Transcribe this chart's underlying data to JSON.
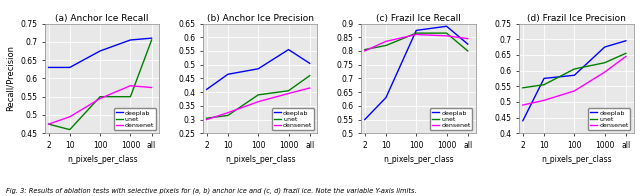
{
  "x_labels": [
    "2",
    "10",
    "100",
    "1000",
    "all"
  ],
  "x_log_positions": [
    2,
    10,
    100,
    1000,
    5000
  ],
  "subplots": [
    {
      "title": "(a) Anchor Ice Recall",
      "ylabel": "Recall/Precision",
      "ylim": [
        0.45,
        0.75
      ],
      "yticks": [
        0.45,
        0.5,
        0.55,
        0.6,
        0.65,
        0.7,
        0.75
      ],
      "deeplab": [
        0.63,
        0.63,
        0.675,
        0.705,
        0.71
      ],
      "unet": [
        0.475,
        0.46,
        0.55,
        0.55,
        0.705
      ],
      "densenet": [
        0.475,
        0.495,
        0.545,
        0.58,
        0.575
      ]
    },
    {
      "title": "(b) Anchor Ice Precision",
      "ylabel": "",
      "ylim": [
        0.25,
        0.65
      ],
      "yticks": [
        0.25,
        0.3,
        0.35,
        0.4,
        0.45,
        0.5,
        0.55,
        0.6,
        0.65
      ],
      "deeplab": [
        0.41,
        0.465,
        0.485,
        0.555,
        0.505
      ],
      "unet": [
        0.305,
        0.315,
        0.39,
        0.405,
        0.46
      ],
      "densenet": [
        0.3,
        0.325,
        0.365,
        0.395,
        0.415
      ]
    },
    {
      "title": "(c) Frazil Ice Recall",
      "ylabel": "",
      "ylim": [
        0.5,
        0.9
      ],
      "yticks": [
        0.5,
        0.55,
        0.6,
        0.65,
        0.7,
        0.75,
        0.8,
        0.85,
        0.9
      ],
      "deeplab": [
        0.55,
        0.63,
        0.875,
        0.89,
        0.825
      ],
      "unet": [
        0.805,
        0.82,
        0.865,
        0.865,
        0.8
      ],
      "densenet": [
        0.8,
        0.835,
        0.86,
        0.855,
        0.845
      ]
    },
    {
      "title": "(d) Frazil Ice Precision",
      "ylabel": "",
      "ylim": [
        0.4,
        0.75
      ],
      "yticks": [
        0.4,
        0.45,
        0.5,
        0.55,
        0.6,
        0.65,
        0.7,
        0.75
      ],
      "deeplab": [
        0.44,
        0.575,
        0.585,
        0.675,
        0.695
      ],
      "unet": [
        0.545,
        0.555,
        0.605,
        0.625,
        0.655
      ],
      "densenet": [
        0.49,
        0.505,
        0.535,
        0.595,
        0.645
      ]
    }
  ],
  "colors": {
    "deeplab": "#0000ff",
    "unet": "#008000",
    "densenet": "#ff00ff"
  },
  "legend_labels": [
    "deeplab",
    "unet",
    "densenet"
  ],
  "xlabel": "n_pixels_per_class",
  "caption": "Fig. 3: Results of ablation tests with selective pixels for (a, b) anchor ice and (c, d) frazil ice. Note the variable Y-axis limits.",
  "background": "#e8e8e8"
}
